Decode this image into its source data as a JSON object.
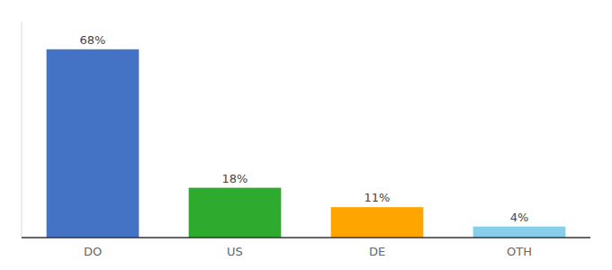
{
  "chart_data": {
    "type": "bar",
    "categories": [
      "DO",
      "US",
      "DE",
      "OTH"
    ],
    "values": [
      68,
      18,
      11,
      4
    ],
    "value_labels": [
      "68%",
      "18%",
      "11%",
      "4%"
    ],
    "colors": [
      "#4472C4",
      "#2EAA2E",
      "#FFA500",
      "#87CEEB"
    ],
    "ylim": [
      0,
      78
    ],
    "data_labels": true,
    "grid": false,
    "tick_labels": "x"
  }
}
